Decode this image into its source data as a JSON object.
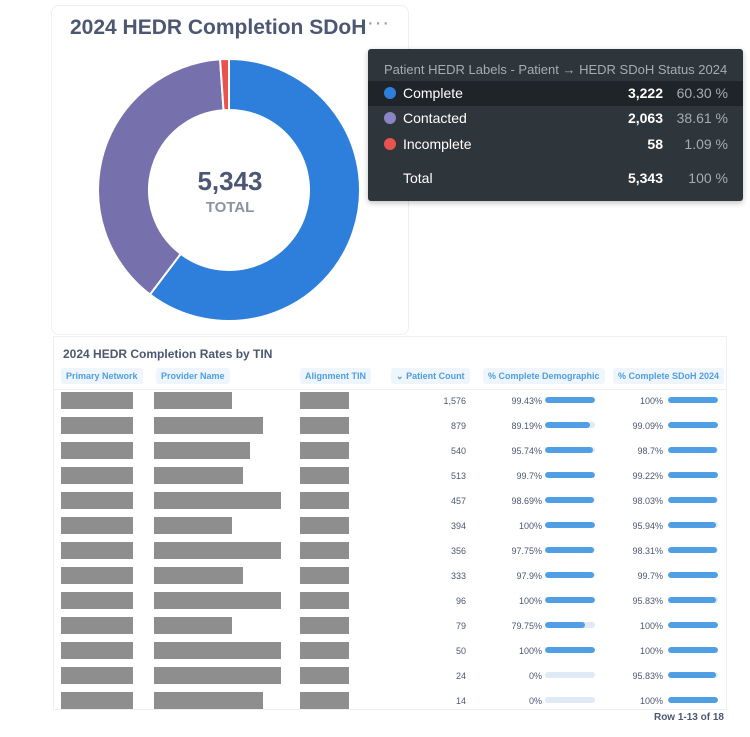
{
  "card": {
    "title": "2024 HEDR Completion SDoH",
    "more_label": "···",
    "total_value": "5,343",
    "total_label": "TOTAL"
  },
  "chart_data": {
    "type": "pie",
    "categories": [
      "Complete",
      "Contacted",
      "Incomplete"
    ],
    "values": [
      3222,
      2063,
      58
    ],
    "colors": [
      "#2e7fdb",
      "#7670ac",
      "#e9524f"
    ],
    "donut": true,
    "total": 5343
  },
  "tooltip": {
    "title": "Patient HEDR Labels - Patient → HEDR SDoH Status 2024",
    "rows": [
      {
        "label": "Complete",
        "count": "3,222",
        "pct": "60.30 %",
        "color": "#2e7fdb"
      },
      {
        "label": "Contacted",
        "count": "2,063",
        "pct": "38.61 %",
        "color": "#8a84c3"
      },
      {
        "label": "Incomplete",
        "count": "58",
        "pct": "1.09 %",
        "color": "#e9524f"
      }
    ],
    "total": {
      "label": "Total",
      "count": "5,343",
      "pct": "100 %"
    }
  },
  "table": {
    "title": "2024 HEDR Completion Rates by TIN",
    "columns": {
      "primary_network": "Primary Network",
      "provider_name": "Provider Name",
      "alignment_tin": "Alignment TIN",
      "patient_count": "Patient Count",
      "complete_demographic": "% Complete Demographic",
      "complete_sdoh": "% Complete SDoH 2024"
    },
    "sort_icon": "chevron-down-icon",
    "rows": [
      {
        "count": "1,576",
        "demo": "99.43%",
        "demo_v": 0.9943,
        "sdoh": "100%",
        "sdoh_v": 1.0
      },
      {
        "count": "879",
        "demo": "89.19%",
        "demo_v": 0.8919,
        "sdoh": "99.09%",
        "sdoh_v": 0.9909
      },
      {
        "count": "540",
        "demo": "95.74%",
        "demo_v": 0.9574,
        "sdoh": "98.7%",
        "sdoh_v": 0.987
      },
      {
        "count": "513",
        "demo": "99.7%",
        "demo_v": 0.997,
        "sdoh": "99.22%",
        "sdoh_v": 0.9922
      },
      {
        "count": "457",
        "demo": "98.69%",
        "demo_v": 0.9869,
        "sdoh": "98.03%",
        "sdoh_v": 0.9803
      },
      {
        "count": "394",
        "demo": "100%",
        "demo_v": 1.0,
        "sdoh": "95.94%",
        "sdoh_v": 0.9594
      },
      {
        "count": "356",
        "demo": "97.75%",
        "demo_v": 0.9775,
        "sdoh": "98.31%",
        "sdoh_v": 0.9831
      },
      {
        "count": "333",
        "demo": "97.9%",
        "demo_v": 0.979,
        "sdoh": "99.7%",
        "sdoh_v": 0.997
      },
      {
        "count": "96",
        "demo": "100%",
        "demo_v": 1.0,
        "sdoh": "95.83%",
        "sdoh_v": 0.9583
      },
      {
        "count": "79",
        "demo": "79.75%",
        "demo_v": 0.7975,
        "sdoh": "100%",
        "sdoh_v": 1.0
      },
      {
        "count": "50",
        "demo": "100%",
        "demo_v": 1.0,
        "sdoh": "100%",
        "sdoh_v": 1.0
      },
      {
        "count": "24",
        "demo": "0%",
        "demo_v": 0.0,
        "sdoh": "95.83%",
        "sdoh_v": 0.9583
      },
      {
        "count": "14",
        "demo": "0%",
        "demo_v": 0.0,
        "sdoh": "100%",
        "sdoh_v": 1.0
      }
    ],
    "footer": "Row 1-13 of 18"
  }
}
